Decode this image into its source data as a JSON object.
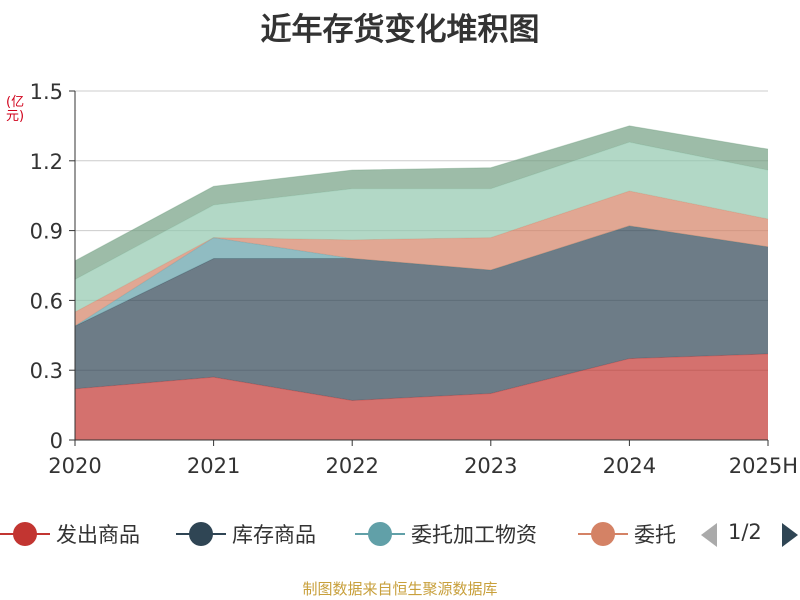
{
  "chart_data": {
    "type": "area",
    "stacked": true,
    "title": "近年存货变化堆积图",
    "unit": "(亿元)",
    "categories": [
      "2020",
      "2021",
      "2022",
      "2023",
      "2024",
      "2025H"
    ],
    "ylim": [
      0,
      1.5
    ],
    "yticks": [
      "0",
      "0.3",
      "0.6",
      "0.9",
      "1.2",
      "1.5"
    ],
    "ytick_values": [
      0,
      0.3,
      0.6,
      0.9,
      1.2,
      1.5
    ],
    "grid": true,
    "legend_position": "bottom",
    "series": [
      {
        "name": "发出商品",
        "color": "#c23531",
        "values": [
          0.22,
          0.27,
          0.17,
          0.2,
          0.35,
          0.37
        ]
      },
      {
        "name": "库存商品",
        "color": "#2f4554",
        "values": [
          0.27,
          0.51,
          0.61,
          0.53,
          0.57,
          0.46
        ]
      },
      {
        "name": "委托加工物资",
        "color": "#61a0a8",
        "values": [
          0.0,
          0.09,
          0.0,
          0.0,
          0.0,
          0.0
        ]
      },
      {
        "name": "委托",
        "color": "#d48265",
        "values": [
          0.06,
          0.0,
          0.08,
          0.14,
          0.15,
          0.12
        ]
      },
      {
        "color": "#91c7ae",
        "values": [
          0.14,
          0.14,
          0.22,
          0.21,
          0.21,
          0.21
        ]
      },
      {
        "color": "#749f83",
        "values": [
          0.08,
          0.08,
          0.08,
          0.09,
          0.07,
          0.09
        ]
      }
    ]
  },
  "legend": {
    "page_indicator": "1/2"
  },
  "source_note": "制图数据来自恒生聚源数据库"
}
